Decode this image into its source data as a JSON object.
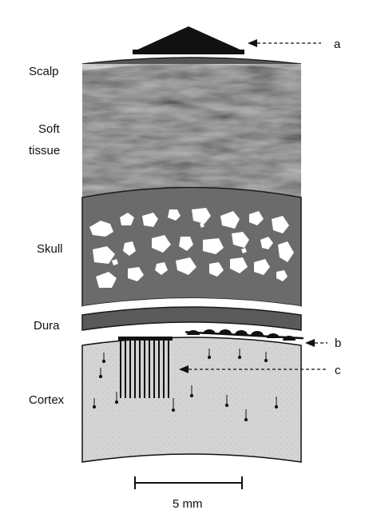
{
  "layers": {
    "scalp": "Scalp",
    "soft_tissue_line1": "Soft",
    "soft_tissue_line2": "tissue",
    "skull": "Skull",
    "dura": "Dura",
    "cortex": "Cortex"
  },
  "pointers": {
    "a": "a",
    "b": "b",
    "c": "c"
  },
  "scale_bar": {
    "label": "5 mm"
  },
  "colors": {
    "electrode": "#111111",
    "scalp_band": "#555555",
    "soft_tissue": "#c9c9c9",
    "skull": "#6a6a6a",
    "bone_pores": "#ffffff",
    "dura": "#5a5a5a",
    "cortex": "#d2d2d2"
  }
}
